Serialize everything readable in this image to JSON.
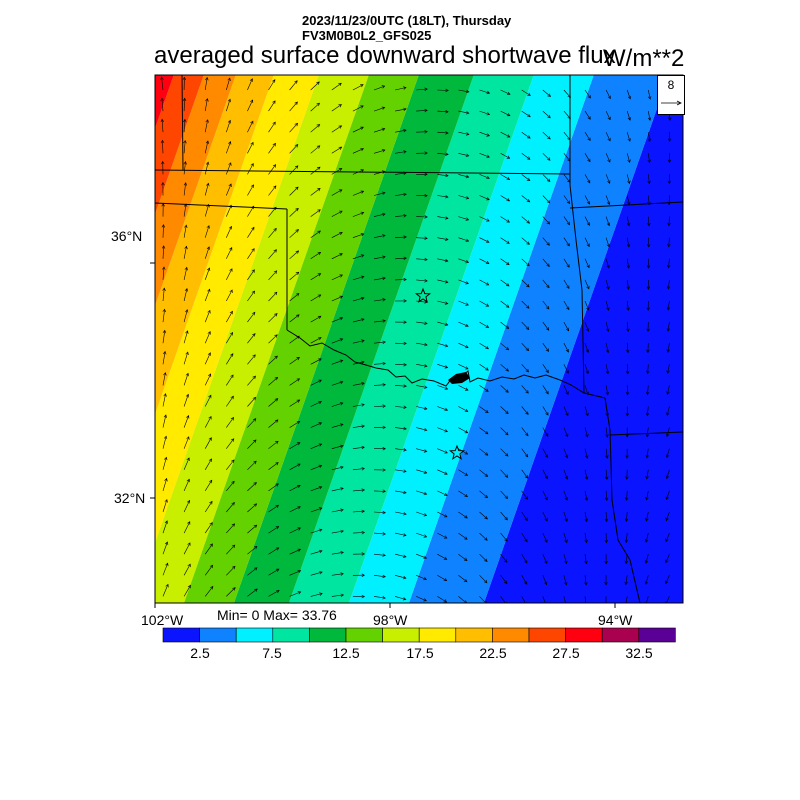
{
  "header": {
    "line1": "2023/11/23/0UTC (18LT), Thursday",
    "line2": "FV3M0B0L2_GFS025"
  },
  "title": "averaged surface downward shortwave flux",
  "units": "W/m**2",
  "reference_vector": {
    "value": "8"
  },
  "axes": {
    "lat_labels": [
      "36°N",
      "32°N"
    ],
    "lon_labels": [
      "102°W",
      "98°W",
      "94°W"
    ]
  },
  "stats": {
    "text": "Min= 0 Max= 33.76"
  },
  "colorbar": {
    "colors": [
      "#0a14ff",
      "#0f82ff",
      "#00f0ff",
      "#00e6a0",
      "#00b83c",
      "#64d200",
      "#c8ee00",
      "#ffea00",
      "#ffbe00",
      "#ff8a00",
      "#ff4600",
      "#ff0010",
      "#aa0050",
      "#5a0096"
    ],
    "labels": [
      "2.5",
      "7.5",
      "12.5",
      "17.5",
      "22.5",
      "27.5",
      "32.5"
    ]
  },
  "field": {
    "description_colors_by_band_low_to_high": true
  },
  "markers": [
    {
      "type": "star",
      "name": "city-marker-north"
    },
    {
      "type": "star",
      "name": "city-marker-south"
    }
  ]
}
